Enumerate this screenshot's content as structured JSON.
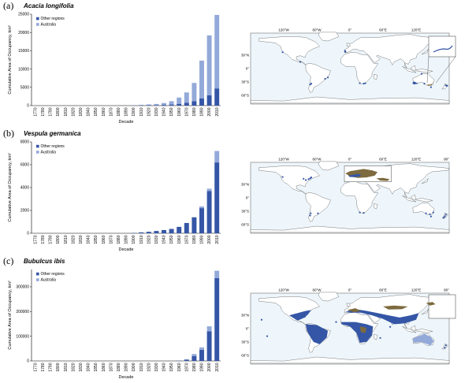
{
  "colors": {
    "other_regions": "#3556a6",
    "australia": "#93a9d9",
    "map_ocean": "#eef6fb",
    "map_land": "#ffffff",
    "native_range": "#7d6a3e"
  },
  "chart_data": [
    {
      "type": "bar",
      "panel": "(a)",
      "title": "Acacia longifolia",
      "xlabel": "Decade",
      "ylabel": "Cumulative Area of Occupancy, km²",
      "ylim": [
        0,
        25000
      ],
      "yticks": [
        "0",
        "5000",
        "10000",
        "15000",
        "20000",
        "25000"
      ],
      "yticks_values": [
        0,
        5000,
        10000,
        15000,
        20000,
        25000
      ],
      "legend": [
        "Other regions",
        "Australia"
      ],
      "stacked": true,
      "categories": [
        "1770",
        "1780",
        "1790",
        "1800",
        "1810",
        "1820",
        "1830",
        "1840",
        "1850",
        "1860",
        "1870",
        "1880",
        "1890",
        "1900",
        "1910",
        "1920",
        "1930",
        "1940",
        "1950",
        "1960",
        "1970",
        "1980",
        "1990",
        "2000",
        "2010"
      ],
      "series": [
        {
          "name": "Other regions",
          "values": [
            0,
            0,
            0,
            0,
            0,
            0,
            0,
            0,
            0,
            0,
            0,
            0,
            0,
            50,
            80,
            120,
            150,
            200,
            300,
            500,
            800,
            1200,
            2000,
            2800,
            4700
          ]
        },
        {
          "name": "Australia",
          "values": [
            0,
            0,
            0,
            0,
            0,
            0,
            0,
            0,
            0,
            0,
            0,
            0,
            0,
            80,
            120,
            200,
            300,
            500,
            900,
            1700,
            2800,
            5000,
            10300,
            16400,
            20100
          ]
        }
      ]
    },
    {
      "type": "bar",
      "panel": "(b)",
      "title": "Vespula germanica",
      "xlabel": "Decade",
      "ylabel": "Cumulative Area of Occupancy, km²",
      "ylim": [
        0,
        8000
      ],
      "yticks": [
        "0",
        "2000",
        "4000",
        "6000",
        "8000"
      ],
      "yticks_values": [
        0,
        2000,
        4000,
        6000,
        8000
      ],
      "legend": [
        "Other regions",
        "Australia"
      ],
      "stacked": true,
      "categories": [
        "1770",
        "1780",
        "1790",
        "1800",
        "1810",
        "1820",
        "1830",
        "1840",
        "1850",
        "1860",
        "1870",
        "1880",
        "1890",
        "1900",
        "1910",
        "1920",
        "1930",
        "1940",
        "1950",
        "1960",
        "1970",
        "1980",
        "1990",
        "2000",
        "2010"
      ],
      "series": [
        {
          "name": "Other regions",
          "values": [
            0,
            0,
            0,
            0,
            0,
            0,
            0,
            0,
            0,
            0,
            0,
            0,
            0,
            30,
            80,
            130,
            200,
            280,
            380,
            560,
            900,
            1400,
            2200,
            3700,
            6200
          ]
        },
        {
          "name": "Australia",
          "values": [
            0,
            0,
            0,
            0,
            0,
            0,
            0,
            0,
            0,
            0,
            0,
            0,
            0,
            0,
            0,
            0,
            0,
            0,
            0,
            0,
            0,
            0,
            150,
            200,
            1000
          ]
        }
      ]
    },
    {
      "type": "bar",
      "panel": "(c)",
      "title": "Bubulcus ibis",
      "xlabel": "Decade",
      "ylabel": "Cumulative Area of Occupancy, km²",
      "ylim": [
        0,
        370000
      ],
      "yticks": [
        "0",
        "100000",
        "200000",
        "300000"
      ],
      "yticks_values": [
        0,
        100000,
        200000,
        300000
      ],
      "legend": [
        "Other regions",
        "Australia"
      ],
      "stacked": true,
      "categories": [
        "1770",
        "1780",
        "1790",
        "1800",
        "1810",
        "1820",
        "1830",
        "1840",
        "1850",
        "1860",
        "1870",
        "1880",
        "1890",
        "1900",
        "1910",
        "1920",
        "1930",
        "1940",
        "1950",
        "1960",
        "1970",
        "1980",
        "1990",
        "2000",
        "2010"
      ],
      "series": [
        {
          "name": "Other regions",
          "values": [
            0,
            0,
            0,
            0,
            0,
            0,
            0,
            0,
            0,
            0,
            0,
            0,
            0,
            0,
            0,
            0,
            0,
            0,
            0,
            1000,
            5000,
            20000,
            45000,
            120000,
            335000
          ]
        },
        {
          "name": "Australia",
          "values": [
            0,
            0,
            0,
            0,
            0,
            0,
            0,
            0,
            0,
            0,
            0,
            0,
            0,
            0,
            0,
            0,
            0,
            0,
            0,
            0,
            2000,
            8000,
            10000,
            20000,
            30000
          ]
        }
      ]
    }
  ],
  "maps": [
    {
      "lon_labels": [
        "120°W",
        "60°W",
        "0°",
        "60°E",
        "120°E"
      ],
      "lat_labels": [
        "30°N",
        "0°",
        "30°S",
        "60°S"
      ]
    },
    {
      "lon_labels": [
        "120°W",
        "60°W",
        "0°",
        "60°E",
        "120°E",
        "90°"
      ],
      "lat_labels": [
        "30°N",
        "0°",
        "30°S",
        "60°S"
      ]
    },
    {
      "lon_labels": [
        "120°W",
        "60°W",
        "0°",
        "60°E",
        "120°E",
        "90°"
      ],
      "lat_labels": [
        "30°N",
        "0°",
        "30°S",
        "60°S"
      ]
    }
  ]
}
